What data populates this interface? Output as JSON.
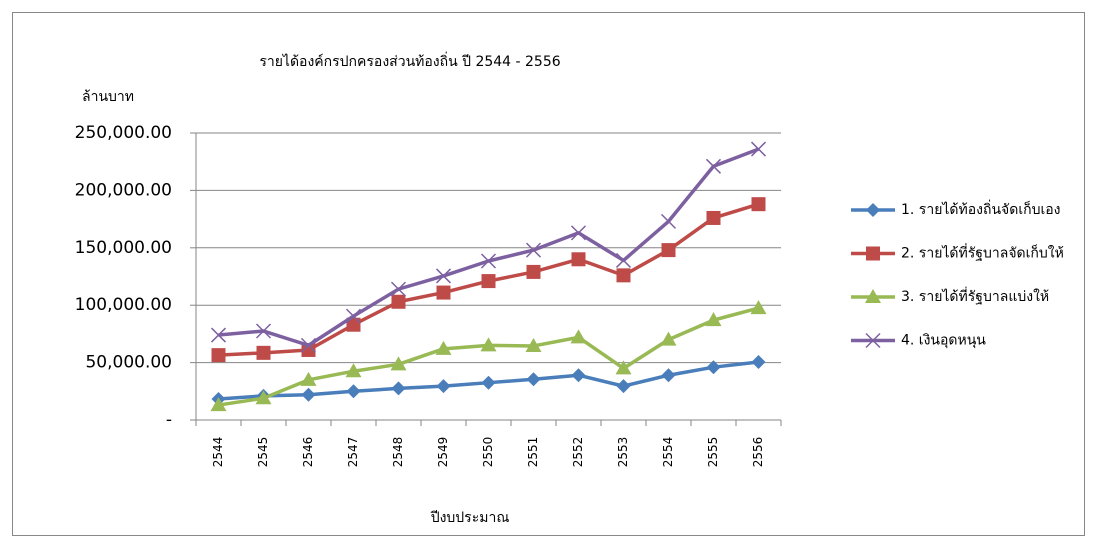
{
  "chart_data": {
    "type": "line",
    "title": "รายได้องค์กรปกครองส่วนท้องถิ่น  ปี 2544 - 2556",
    "y_label": "ล้านบาท",
    "x_label": "ปีงบประมาณ",
    "categories": [
      "2544",
      "2545",
      "2546",
      "2547",
      "2548",
      "2549",
      "2550",
      "2551",
      "2552",
      "2553",
      "2554",
      "2555",
      "2556"
    ],
    "series": [
      {
        "name": "1. รายได้ท้องถิ่นจัดเก็บเอง",
        "color": "#4a7ebb",
        "marker": "diamond",
        "values": [
          18300,
          21000,
          22000,
          25000,
          27500,
          29500,
          32500,
          35500,
          39000,
          29500,
          39000,
          46000,
          50500
        ]
      },
      {
        "name": "2. รายได้ที่รัฐบาลจัดเก็บให้",
        "color": "#be4b48",
        "marker": "square",
        "values": [
          56500,
          58500,
          61000,
          83000,
          103000,
          111000,
          121000,
          129000,
          140000,
          126000,
          148000,
          176000,
          188000
        ]
      },
      {
        "name": "3. รายได้ที่รัฐบาลแบ่งให้",
        "color": "#98b954",
        "marker": "triangle",
        "values": [
          13000,
          19000,
          35000,
          42500,
          48500,
          62000,
          65000,
          64500,
          72000,
          45000,
          70000,
          87000,
          97500
        ]
      },
      {
        "name": "4. เงินอุดหนุน",
        "color": "#7d60a0",
        "marker": "x",
        "values": [
          74000,
          77500,
          65000,
          90500,
          114000,
          125500,
          138500,
          148000,
          163000,
          139000,
          173000,
          221000,
          236000
        ]
      }
    ],
    "ylim": [
      0,
      250000
    ],
    "yticks": [
      {
        "value": 0,
        "label": "-"
      },
      {
        "value": 50000,
        "label": "50,000.00"
      },
      {
        "value": 100000,
        "label": "100,000.00"
      },
      {
        "value": 150000,
        "label": "150,000.00"
      },
      {
        "value": 200000,
        "label": "200,000.00"
      },
      {
        "value": 250000,
        "label": "250,000.00"
      }
    ],
    "grid": true,
    "legend": "right"
  }
}
